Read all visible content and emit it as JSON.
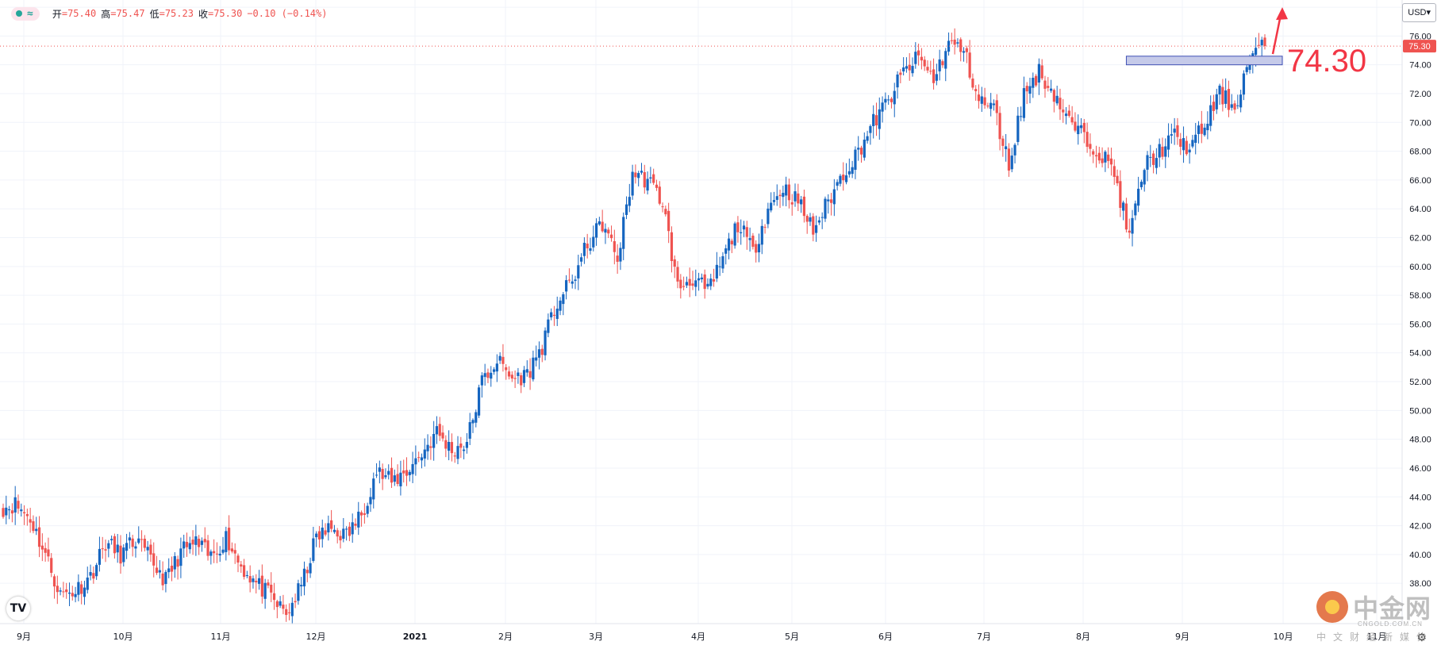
{
  "legend": {
    "open_label": "开",
    "open_value": "=75.40",
    "high_label": "高",
    "high_value": "=75.47",
    "low_label": "低",
    "low_value": "=75.23",
    "close_label": "收",
    "close_value": "=75.30",
    "change": "−0.10 (−0.14%)"
  },
  "currency_button": "USD▾",
  "tv_logo": "TV",
  "watermark": {
    "name": "中金网",
    "domain": "CNGOLD.COM.CN",
    "tagline": "中文财经新媒体"
  },
  "colors": {
    "up": "#1565c0",
    "down": "#ef5350",
    "annotation": "#f23645",
    "zone_fill": "#c5cae9",
    "zone_border": "#3f51b5"
  },
  "chart_data": {
    "type": "candlestick",
    "y_axis": {
      "ylim": [
        35.2,
        78.5
      ],
      "ticks": [
        38,
        40,
        42,
        44,
        46,
        48,
        50,
        52,
        54,
        56,
        58,
        60,
        62,
        64,
        66,
        68,
        70,
        72,
        74,
        76,
        78
      ],
      "tick_format": "2dp"
    },
    "x_axis": {
      "labels": [
        "9月",
        "10月",
        "11月",
        "12月",
        "2021",
        "2月",
        "3月",
        "4月",
        "5月",
        "6月",
        "7月",
        "8月",
        "9月",
        "10月",
        "11月"
      ]
    },
    "last_price": 75.3,
    "last_price_label": "75.30",
    "annotation": {
      "text": "74.30",
      "level": 74.3,
      "zone": [
        74.0,
        74.6
      ],
      "arrow": "up"
    },
    "grid": true,
    "anchors": [
      43.2,
      43.5,
      42.5,
      40.0,
      37.2,
      37.5,
      38.5,
      40.8,
      40.0,
      41.0,
      39.6,
      38.2,
      40.2,
      40.8,
      39.8,
      41.2,
      39.2,
      38.0,
      37.0,
      35.8,
      37.8,
      41.2,
      41.8,
      41.3,
      42.8,
      45.8,
      45.0,
      45.8,
      47.0,
      48.5,
      47.2,
      47.8,
      52.0,
      53.5,
      52.2,
      52.5,
      54.5,
      57.5,
      59.0,
      61.5,
      63.0,
      60.5,
      66.5,
      66.0,
      64.5,
      58.5,
      59.2,
      58.2,
      60.5,
      63.0,
      61.0,
      64.0,
      65.5,
      64.5,
      62.5,
      64.5,
      66.5,
      68.0,
      70.0,
      71.5,
      73.5,
      74.5,
      73.0,
      75.5,
      75.0,
      71.5,
      71.0,
      67.0,
      72.0,
      73.5,
      72.0,
      70.0,
      69.0,
      68.0,
      66.5,
      62.0,
      67.0,
      68.0,
      69.0,
      68.2,
      69.8,
      72.0,
      71.0,
      74.5,
      75.3
    ]
  }
}
